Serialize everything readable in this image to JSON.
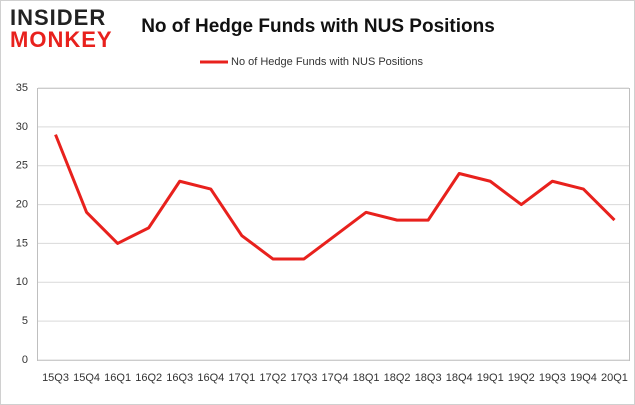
{
  "logo": {
    "top": "INSIDER",
    "bottom": "MONKEY"
  },
  "chart_data": {
    "type": "line",
    "title": "No of Hedge Funds with NUS Positions",
    "categories": [
      "15Q3",
      "15Q4",
      "16Q1",
      "16Q2",
      "16Q3",
      "16Q4",
      "17Q1",
      "17Q2",
      "17Q3",
      "17Q4",
      "18Q1",
      "18Q2",
      "18Q3",
      "18Q4",
      "19Q1",
      "19Q2",
      "19Q3",
      "19Q4",
      "20Q1"
    ],
    "series": [
      {
        "name": "No of Hedge Funds with NUS Positions",
        "color": "#e8211d",
        "values": [
          29,
          19,
          15,
          17,
          23,
          22,
          16,
          13,
          13,
          16,
          19,
          18,
          18,
          24,
          23,
          20,
          23,
          22,
          18
        ]
      }
    ],
    "ylim": [
      0,
      35
    ],
    "yticks": [
      0,
      5,
      10,
      15,
      20,
      25,
      30,
      35
    ],
    "grid": true,
    "legend": "top"
  }
}
